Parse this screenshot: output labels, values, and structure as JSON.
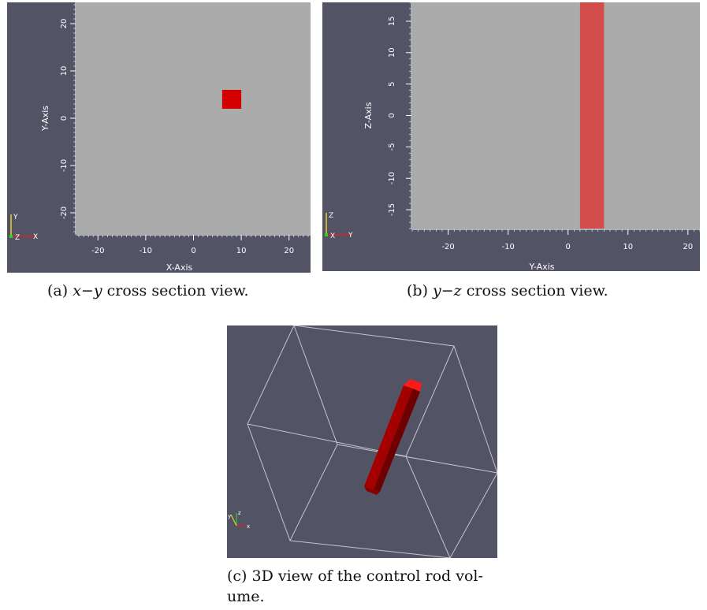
{
  "colors": {
    "background_dark": "#525466",
    "plot_area": "#ababab",
    "rod_solid": "#d40000",
    "rod_light": "#d24c4c",
    "box_edge": "#c9c9d1",
    "tick_text": "#ffffff"
  },
  "captions": {
    "a": {
      "label": "(a) ",
      "math": "x−y",
      "text": " cross section view."
    },
    "b": {
      "label": "(b) ",
      "math": "y−z",
      "text": " cross section view."
    },
    "c": {
      "line1": "(c) 3D view of the control rod vol-",
      "line2": "ume."
    }
  },
  "panels": {
    "a": {
      "xaxis_label": "X-Axis",
      "yaxis_label": "Y-Axis",
      "triad": {
        "up": "Y",
        "right": "X",
        "center": "Z"
      }
    },
    "b": {
      "xaxis_label": "Y-Axis",
      "yaxis_label": "Z-Axis",
      "triad": {
        "up": "Z",
        "right": "Y",
        "center": "X"
      }
    },
    "c": {
      "triad": {
        "up": "z",
        "right": "x",
        "left": "y"
      }
    }
  },
  "chart_data": [
    {
      "type": "heatmap",
      "panel": "a",
      "xlabel": "X-Axis",
      "ylabel": "Y-Axis",
      "xlim": [
        -24.5,
        24.5
      ],
      "ylim": [
        -24.5,
        24.5
      ],
      "xticks": [
        -20,
        -10,
        0,
        10,
        20
      ],
      "yticks": [
        -20,
        -10,
        0,
        10,
        20
      ],
      "rod_region": {
        "x": [
          6,
          10
        ],
        "y": [
          2,
          6
        ]
      }
    },
    {
      "type": "heatmap",
      "panel": "b",
      "xlabel": "Y-Axis",
      "ylabel": "Z-Axis",
      "xlim": [
        -26,
        22
      ],
      "ylim": [
        -18,
        18
      ],
      "xticks": [
        -20,
        -10,
        0,
        10,
        20
      ],
      "yticks": [
        -15,
        -10,
        -5,
        0,
        5,
        10,
        15
      ],
      "rod_region": {
        "x": [
          2,
          6
        ],
        "y": [
          -18,
          18
        ]
      }
    }
  ]
}
